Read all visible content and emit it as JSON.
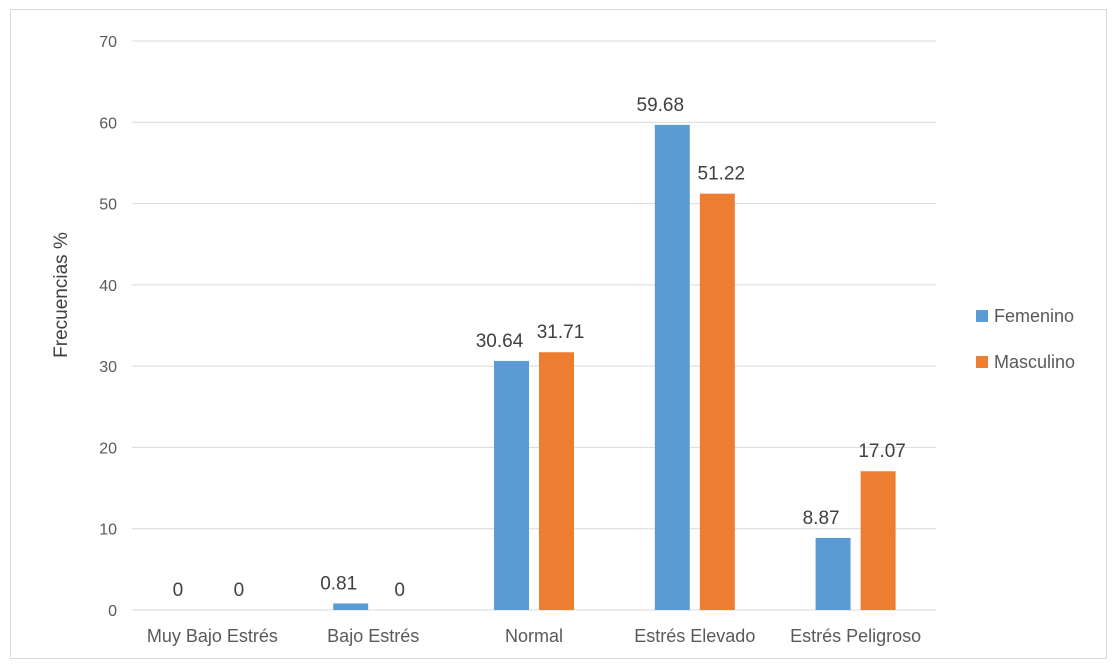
{
  "chart_data": {
    "type": "bar",
    "categories": [
      "Muy Bajo Estrés",
      "Bajo Estrés",
      "Normal",
      "Estrés Elevado",
      "Estrés Peligroso"
    ],
    "series": [
      {
        "name": "Femenino",
        "values": [
          0,
          0.81,
          30.64,
          59.68,
          8.87
        ],
        "color": "#5b9bd5"
      },
      {
        "name": "Masculino",
        "values": [
          0,
          0,
          31.71,
          51.22,
          17.07
        ],
        "color": "#ed7d31"
      }
    ],
    "value_labels": [
      [
        "0",
        "0.81",
        "30.64",
        "59.68",
        "8.87"
      ],
      [
        "0",
        "0",
        "31.71",
        "51.22",
        "17.07"
      ]
    ],
    "ylabel": "Frecuencias %",
    "xlabel": "",
    "ylim": [
      0,
      70
    ],
    "yticks": [
      "0",
      "10",
      "20",
      "30",
      "40",
      "50",
      "60",
      "70"
    ],
    "grid": true,
    "legend": "right"
  }
}
